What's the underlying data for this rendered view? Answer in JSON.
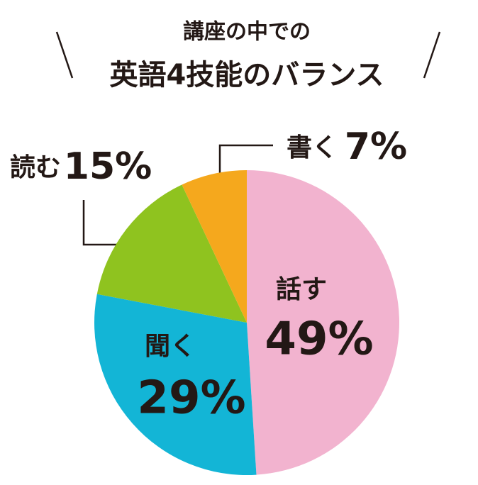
{
  "chart_data": {
    "type": "pie",
    "title": [
      "講座の中での",
      "英語4技能のバランス"
    ],
    "categories": [
      "話す",
      "聞く",
      "読む",
      "書く"
    ],
    "values": [
      49,
      29,
      15,
      7
    ],
    "value_labels": [
      "49%",
      "29%",
      "15%",
      "7%"
    ],
    "colors": [
      "#f2b3cf",
      "#13b5d6",
      "#8fc31f",
      "#f5a81d"
    ]
  }
}
